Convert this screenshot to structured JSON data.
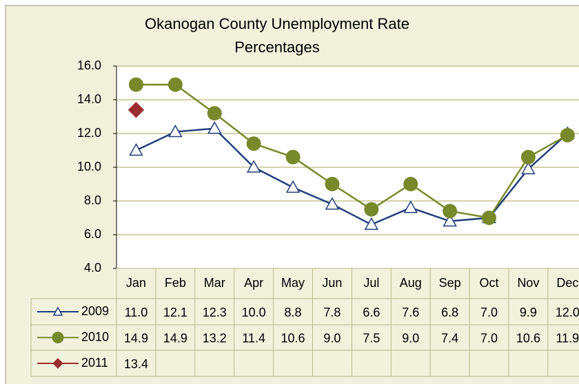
{
  "chart_data": {
    "type": "line",
    "title": "Okanogan County Unemployment Rate",
    "subtitle": "Percentages",
    "categories": [
      "Jan",
      "Feb",
      "Mar",
      "Apr",
      "May",
      "Jun",
      "Jul",
      "Aug",
      "Sep",
      "Oct",
      "Nov",
      "Dec"
    ],
    "series": [
      {
        "name": "2009",
        "color": "#1f3d7a",
        "marker": "triangle",
        "values": [
          11.0,
          12.1,
          12.3,
          10.0,
          8.8,
          7.8,
          6.6,
          7.6,
          6.8,
          7.0,
          9.9,
          12.0
        ],
        "value_labels": [
          "11.0",
          "12.1",
          "12.3",
          "10.0",
          "8.8",
          "7.8",
          "6.6",
          "7.6",
          "6.8",
          "7.0",
          "9.9",
          "12.0"
        ]
      },
      {
        "name": "2010",
        "color": "#77892a",
        "marker": "circle",
        "values": [
          14.9,
          14.9,
          13.2,
          11.4,
          10.6,
          9.0,
          7.5,
          9.0,
          7.4,
          7.0,
          10.6,
          11.9
        ],
        "value_labels": [
          "14.9",
          "14.9",
          "13.2",
          "11.4",
          "10.6",
          "9.0",
          "7.5",
          "9.0",
          "7.4",
          "7.0",
          "10.6",
          "11.9"
        ]
      },
      {
        "name": "2011",
        "color": "#9b2d30",
        "marker": "diamond",
        "values": [
          13.4,
          null,
          null,
          null,
          null,
          null,
          null,
          null,
          null,
          null,
          null,
          null
        ],
        "value_labels": [
          "13.4",
          null,
          null,
          null,
          null,
          null,
          null,
          null,
          null,
          null,
          null,
          null
        ]
      }
    ],
    "ylim": [
      4,
      16
    ],
    "yticks": [
      {
        "value": 4,
        "label": "4.0"
      },
      {
        "value": 6,
        "label": "6.0"
      },
      {
        "value": 8,
        "label": "8.0"
      },
      {
        "value": 10,
        "label": "10.0"
      },
      {
        "value": 12,
        "label": "12.0"
      },
      {
        "value": 14,
        "label": "14.0"
      },
      {
        "value": 16,
        "label": "16.0"
      }
    ],
    "grid": true
  }
}
